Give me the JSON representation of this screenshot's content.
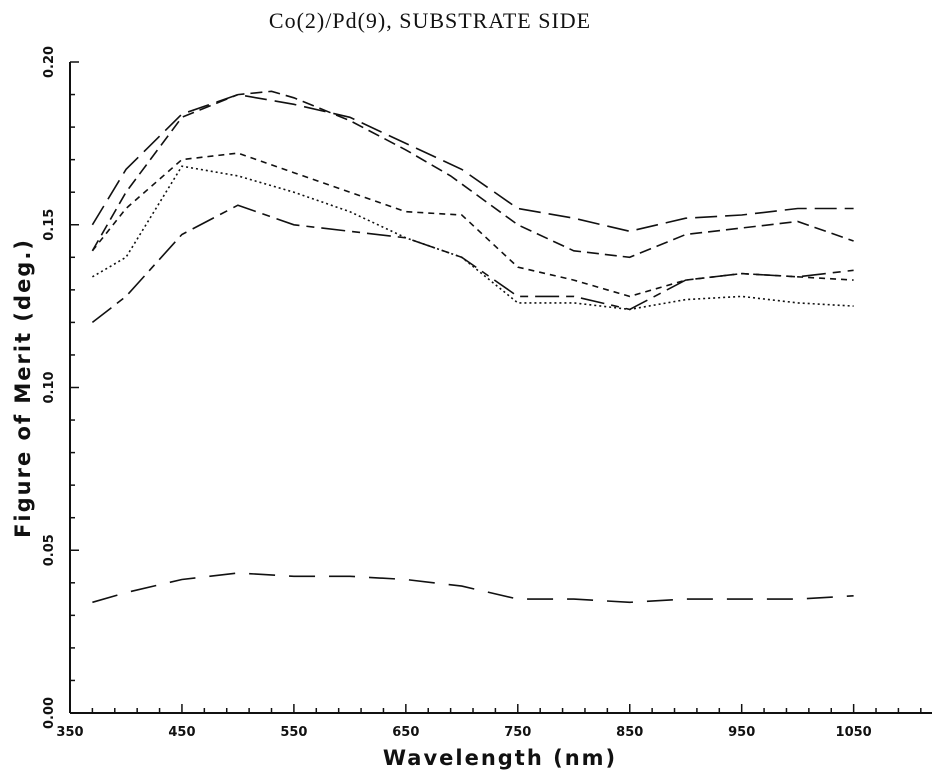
{
  "chart_data": {
    "type": "line",
    "title": "Co(2)/Pd(9), SUBSTRATE SIDE",
    "xlabel": "Wavelength (nm)",
    "ylabel": "Figure of Merit (deg.)",
    "xlim": [
      350,
      1120
    ],
    "ylim": [
      0.0,
      0.2
    ],
    "x_ticks": [
      "350",
      "450",
      "550",
      "650",
      "750",
      "850",
      "950",
      "1050"
    ],
    "y_ticks": [
      "0.00",
      "0.05",
      "0.10",
      "0.15",
      "0.20"
    ],
    "grid": false,
    "series": [
      {
        "line_style": "long-dash",
        "x": [
          370,
          400,
          450,
          500,
          550,
          600,
          650,
          700,
          750,
          800,
          850,
          900,
          950,
          1000,
          1050
        ],
        "y": [
          0.15,
          0.167,
          0.184,
          0.19,
          0.187,
          0.183,
          0.175,
          0.167,
          0.155,
          0.152,
          0.148,
          0.152,
          0.153,
          0.155,
          0.155
        ]
      },
      {
        "line_style": "medium-dash",
        "x": [
          370,
          400,
          450,
          500,
          530,
          550,
          600,
          650,
          690,
          750,
          800,
          850,
          900,
          950,
          1000,
          1050
        ],
        "y": [
          0.142,
          0.16,
          0.183,
          0.19,
          0.191,
          0.189,
          0.182,
          0.173,
          0.165,
          0.15,
          0.142,
          0.14,
          0.147,
          0.149,
          0.151,
          0.145
        ]
      },
      {
        "line_style": "short-dash",
        "x": [
          370,
          400,
          450,
          500,
          550,
          600,
          650,
          700,
          750,
          800,
          850,
          900,
          950,
          1000,
          1050
        ],
        "y": [
          0.142,
          0.155,
          0.17,
          0.172,
          0.166,
          0.16,
          0.154,
          0.153,
          0.137,
          0.133,
          0.128,
          0.133,
          0.135,
          0.134,
          0.133
        ]
      },
      {
        "line_style": "dotted",
        "x": [
          370,
          400,
          450,
          500,
          550,
          600,
          650,
          700,
          750,
          800,
          850,
          900,
          950,
          1000,
          1050
        ],
        "y": [
          0.134,
          0.14,
          0.168,
          0.165,
          0.16,
          0.154,
          0.146,
          0.14,
          0.126,
          0.126,
          0.124,
          0.127,
          0.128,
          0.126,
          0.125
        ]
      },
      {
        "line_style": "long-short-dash",
        "x": [
          370,
          400,
          450,
          500,
          550,
          600,
          650,
          700,
          750,
          800,
          850,
          900,
          950,
          1000,
          1050
        ],
        "y": [
          0.12,
          0.128,
          0.147,
          0.156,
          0.15,
          0.148,
          0.146,
          0.14,
          0.128,
          0.128,
          0.124,
          0.133,
          0.135,
          0.134,
          0.136
        ]
      },
      {
        "line_style": "wide-dash",
        "x": [
          370,
          400,
          450,
          500,
          550,
          600,
          650,
          700,
          750,
          800,
          850,
          900,
          950,
          1000,
          1050
        ],
        "y": [
          0.034,
          0.037,
          0.041,
          0.043,
          0.042,
          0.042,
          0.041,
          0.039,
          0.035,
          0.035,
          0.034,
          0.035,
          0.035,
          0.035,
          0.036
        ]
      }
    ]
  }
}
